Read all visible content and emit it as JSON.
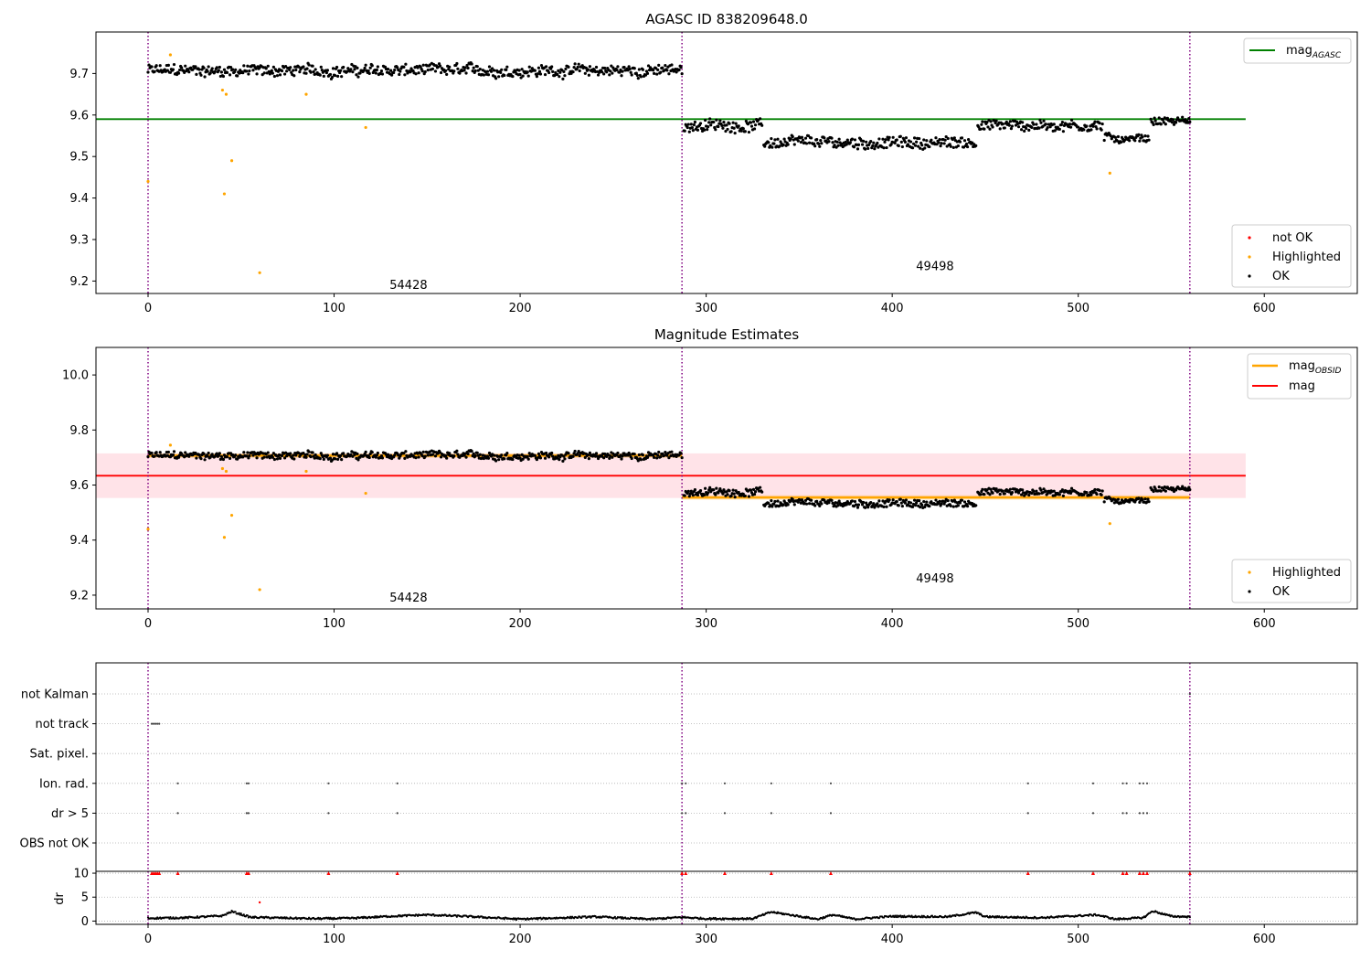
{
  "colors": {
    "ok": "#000000",
    "highlighted": "#ffa500",
    "not_ok": "#ff0000",
    "mag_agasc": "#008000",
    "mag_obsid": "#ffa500",
    "mag": "#ff0000",
    "obsid_boundary": "#800080",
    "mag_band": "#ffc0cb"
  },
  "chart_data": [
    {
      "type": "scatter",
      "title": "AGASC ID 838209648.0",
      "xlim": [
        -28,
        650
      ],
      "ylim": [
        9.17,
        9.8
      ],
      "x_ticks": [
        0,
        100,
        200,
        300,
        400,
        500,
        600
      ],
      "y_ticks": [
        "9.2",
        "9.3",
        "9.4",
        "9.5",
        "9.6",
        "9.7"
      ],
      "obsid_boundaries": [
        0,
        287,
        560
      ],
      "obsid_labels": [
        {
          "text": "54428",
          "x": 140,
          "y": 9.19
        },
        {
          "text": "49498",
          "x": 423,
          "y": 9.235
        }
      ],
      "mag_agasc": 9.59,
      "line_legend": {
        "base": "mag",
        "sub": "AGASC"
      },
      "series": [
        {
          "name": "not OK",
          "points": []
        },
        {
          "name": "Highlighted",
          "points": [
            [
              0,
              9.44
            ],
            [
              12,
              9.745
            ],
            [
              40,
              9.66
            ],
            [
              42,
              9.65
            ],
            [
              41,
              9.41
            ],
            [
              45,
              9.49
            ],
            [
              60,
              9.22
            ],
            [
              85,
              9.65
            ],
            [
              117,
              9.57
            ],
            [
              517,
              9.46
            ]
          ]
        },
        {
          "name": "OK",
          "segments": [
            {
              "start": 0,
              "end": 287,
              "level": 9.707,
              "noise": 0.012
            },
            {
              "start": 288,
              "end": 330,
              "level": 9.575,
              "noise": 0.012
            },
            {
              "start": 331,
              "end": 445,
              "level": 9.533,
              "noise": 0.012
            },
            {
              "start": 446,
              "end": 513,
              "level": 9.575,
              "noise": 0.012
            },
            {
              "start": 514,
              "end": 538,
              "level": 9.545,
              "noise": 0.008
            },
            {
              "start": 539,
              "end": 560,
              "level": 9.585,
              "noise": 0.008
            }
          ]
        }
      ]
    },
    {
      "type": "scatter",
      "title": "Magnitude Estimates",
      "xlim": [
        -28,
        650
      ],
      "ylim": [
        9.15,
        10.1
      ],
      "x_ticks": [
        0,
        100,
        200,
        300,
        400,
        500,
        600
      ],
      "y_ticks": [
        "9.2",
        "9.4",
        "9.6",
        "9.8",
        "10.0"
      ],
      "obsid_boundaries": [
        0,
        287,
        560
      ],
      "obsid_labels": [
        {
          "text": "54428",
          "x": 140,
          "y": 9.19
        },
        {
          "text": "49498",
          "x": 423,
          "y": 9.26
        }
      ],
      "mag": 9.634,
      "mag_band": [
        9.553,
        9.715
      ],
      "mag_obsid": [
        {
          "start": 0,
          "end": 287,
          "value": 9.707
        },
        {
          "start": 287,
          "end": 560,
          "value": 9.555
        }
      ],
      "line_legend": [
        {
          "base": "mag",
          "sub": "OBSID"
        },
        {
          "base": "mag",
          "sub": ""
        }
      ],
      "series": [
        {
          "name": "Highlighted",
          "points": [
            [
              0,
              9.44
            ],
            [
              12,
              9.745
            ],
            [
              40,
              9.66
            ],
            [
              42,
              9.65
            ],
            [
              41,
              9.41
            ],
            [
              45,
              9.49
            ],
            [
              60,
              9.22
            ],
            [
              85,
              9.65
            ],
            [
              117,
              9.57
            ],
            [
              517,
              9.46
            ]
          ]
        },
        {
          "name": "OK",
          "same_as_panel": 0
        }
      ]
    },
    {
      "type": "scatter",
      "title": "",
      "xlim": [
        -28,
        650
      ],
      "x_ticks": [
        0,
        100,
        200,
        300,
        400,
        500,
        600
      ],
      "obsid_boundaries": [
        0,
        287,
        560
      ],
      "flag_categories": [
        "not Kalman",
        "not track",
        "Sat. pixel.",
        "Ion. rad.",
        "dr > 5",
        "OBS not OK"
      ],
      "flags": {
        "not Kalman": [
          560
        ],
        "not track": [
          2,
          3,
          4,
          5,
          6
        ],
        "Sat. pixel.": [],
        "Ion. rad.": [
          16,
          53,
          54,
          97,
          134,
          287,
          289,
          310,
          335,
          367,
          473,
          508,
          524,
          526,
          533,
          535,
          537
        ],
        "dr > 5": [
          16,
          53,
          54,
          97,
          134,
          287,
          289,
          310,
          335,
          367,
          473,
          508,
          524,
          526,
          533,
          535,
          537
        ],
        "OBS not OK": []
      },
      "dr_ylabel": "dr",
      "dr_y_ticks": [
        "0",
        "5",
        "10"
      ],
      "dr_ylim": [
        -0.3,
        10.2
      ],
      "dr_clipped_x": [
        2,
        3,
        4,
        5,
        6,
        16,
        53,
        54,
        97,
        134,
        287,
        289,
        310,
        335,
        367,
        473,
        508,
        524,
        526,
        533,
        535,
        537,
        560
      ],
      "dr_red_points": [
        [
          60,
          3.9
        ]
      ],
      "dr_profile": [
        [
          0,
          0.6
        ],
        [
          20,
          0.7
        ],
        [
          40,
          1.1
        ],
        [
          45,
          2.0
        ],
        [
          55,
          0.8
        ],
        [
          90,
          0.5
        ],
        [
          110,
          0.6
        ],
        [
          130,
          1.0
        ],
        [
          150,
          1.3
        ],
        [
          170,
          1.0
        ],
        [
          200,
          0.4
        ],
        [
          240,
          0.9
        ],
        [
          270,
          0.4
        ],
        [
          287,
          0.8
        ],
        [
          300,
          0.5
        ],
        [
          325,
          0.5
        ],
        [
          335,
          1.9
        ],
        [
          350,
          1.0
        ],
        [
          360,
          0.4
        ],
        [
          368,
          1.3
        ],
        [
          380,
          0.4
        ],
        [
          400,
          1.0
        ],
        [
          430,
          0.9
        ],
        [
          445,
          1.8
        ],
        [
          450,
          0.9
        ],
        [
          480,
          0.7
        ],
        [
          510,
          1.3
        ],
        [
          520,
          0.4
        ],
        [
          535,
          0.7
        ],
        [
          540,
          2.1
        ],
        [
          550,
          1.0
        ],
        [
          560,
          0.9
        ]
      ]
    }
  ]
}
